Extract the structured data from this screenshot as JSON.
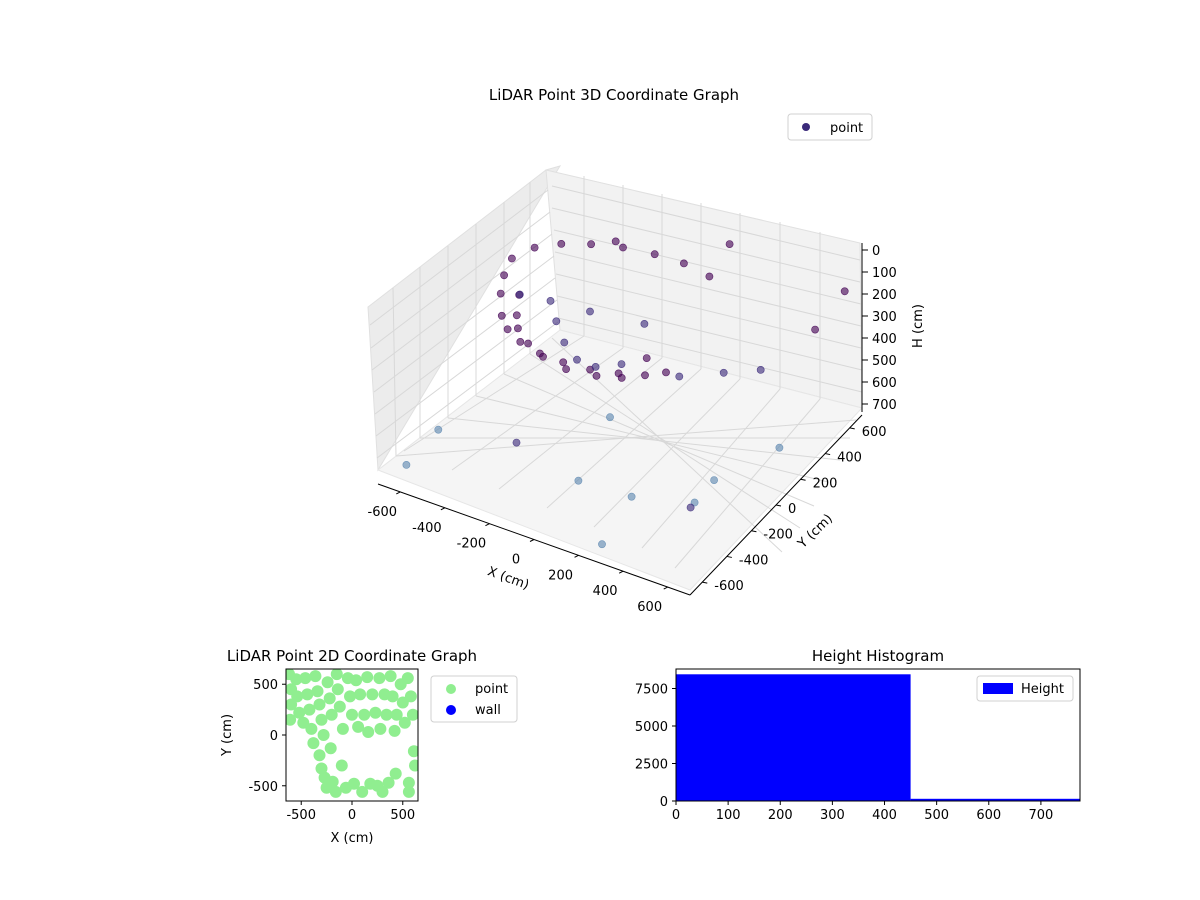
{
  "chart_data": [
    {
      "type": "scatter",
      "projection": "3d",
      "title": "LiDAR Point 3D Coordinate Graph",
      "xlabel": "X (cm)",
      "ylabel": "Y (cm)",
      "zlabel": "H (cm)",
      "xlim": [
        -700,
        700
      ],
      "ylim": [
        -700,
        700
      ],
      "zlim": [
        0,
        750
      ],
      "z_inverted": true,
      "xticks": [
        -600,
        -400,
        -200,
        0,
        200,
        400,
        600
      ],
      "yticks": [
        -600,
        -400,
        -200,
        0,
        200,
        400,
        600
      ],
      "zticks": [
        0,
        100,
        200,
        300,
        400,
        500,
        600,
        700
      ],
      "grid": true,
      "legend": {
        "position": "top-right",
        "entries": [
          "point"
        ]
      },
      "colors": {
        "dense": "#440154",
        "mid": "#3b2a7a",
        "sparse": "#5d87b0",
        "legend_marker": "#3b2a7a"
      },
      "series": [
        {
          "name": "point",
          "points": [
            [
              -540,
              100,
              160
            ],
            [
              -520,
              0,
              170
            ],
            [
              -480,
              -100,
              180
            ],
            [
              -420,
              -200,
              200
            ],
            [
              -350,
              -280,
              190
            ],
            [
              -260,
              -340,
              180
            ],
            [
              -150,
              -380,
              170
            ],
            [
              -40,
              -390,
              165
            ],
            [
              70,
              -370,
              170
            ],
            [
              170,
              -320,
              180
            ],
            [
              250,
              -250,
              200
            ],
            [
              300,
              -170,
              215
            ],
            [
              -510,
              230,
              175
            ],
            [
              -440,
              320,
              185
            ],
            [
              -350,
              400,
              200
            ],
            [
              -240,
              460,
              210
            ],
            [
              -120,
              500,
              220
            ],
            [
              0,
              520,
              230
            ],
            [
              120,
              510,
              240
            ],
            [
              -480,
              50,
              270
            ],
            [
              -430,
              -60,
              280
            ],
            [
              -370,
              -160,
              260
            ],
            [
              -280,
              -240,
              250
            ],
            [
              -180,
              -300,
              240
            ],
            [
              -60,
              -330,
              235
            ],
            [
              60,
              -300,
              240
            ],
            [
              140,
              -240,
              255
            ],
            [
              -400,
              160,
              330
            ],
            [
              -330,
              80,
              350
            ],
            [
              -250,
              0,
              370
            ],
            [
              -160,
              -60,
              380
            ],
            [
              -60,
              -90,
              360
            ],
            [
              40,
              -60,
              330
            ],
            [
              120,
              0,
              310
            ],
            [
              -560,
              200,
              380
            ],
            [
              -300,
              300,
              420
            ],
            [
              -100,
              380,
              450
            ],
            [
              200,
              120,
              430
            ],
            [
              300,
              300,
              480
            ],
            [
              400,
              420,
              500
            ],
            [
              -200,
              -480,
              520
            ],
            [
              100,
              -520,
              560
            ],
            [
              300,
              -450,
              600
            ],
            [
              500,
              -300,
              640
            ],
            [
              -600,
              -650,
              660
            ],
            [
              650,
              650,
              200
            ],
            [
              600,
              500,
              300
            ],
            [
              550,
              300,
              720
            ],
            [
              450,
              -50,
              700
            ],
            [
              250,
              -600,
              740
            ],
            [
              -650,
              -300,
              720
            ],
            [
              -350,
              600,
              300
            ],
            [
              150,
              620,
              150
            ],
            [
              620,
              -550,
              480
            ],
            [
              -100,
              100,
              700
            ]
          ]
        }
      ]
    },
    {
      "type": "scatter",
      "title": "LiDAR Point 2D Coordinate Graph",
      "xlabel": "X (cm)",
      "ylabel": "Y (cm)",
      "xlim": [
        -650,
        650
      ],
      "ylim": [
        -650,
        650
      ],
      "xticks": [
        -500,
        0,
        500
      ],
      "yticks": [
        -500,
        0,
        500
      ],
      "legend": {
        "position": "outside-right",
        "entries": [
          "point",
          "wall"
        ]
      },
      "colors": {
        "point": "#90ee90",
        "wall": "#0000ff"
      },
      "series": [
        {
          "name": "point",
          "points": [
            [
              -620,
              600
            ],
            [
              -600,
              450
            ],
            [
              -600,
              300
            ],
            [
              -610,
              150
            ],
            [
              -550,
              550
            ],
            [
              -540,
              380
            ],
            [
              -520,
              220
            ],
            [
              -480,
              120
            ],
            [
              -460,
              560
            ],
            [
              -440,
              400
            ],
            [
              -420,
              250
            ],
            [
              -400,
              60
            ],
            [
              -380,
              -80
            ],
            [
              -360,
              580
            ],
            [
              -340,
              430
            ],
            [
              -320,
              300
            ],
            [
              -320,
              -200
            ],
            [
              -300,
              150
            ],
            [
              -300,
              -330
            ],
            [
              -280,
              0
            ],
            [
              -270,
              -420
            ],
            [
              -250,
              -520
            ],
            [
              -240,
              520
            ],
            [
              -220,
              360
            ],
            [
              -210,
              -130
            ],
            [
              -200,
              200
            ],
            [
              -190,
              -460
            ],
            [
              -160,
              -560
            ],
            [
              -150,
              600
            ],
            [
              -140,
              450
            ],
            [
              -120,
              280
            ],
            [
              -100,
              -300
            ],
            [
              -90,
              60
            ],
            [
              -60,
              -520
            ],
            [
              -40,
              560
            ],
            [
              -20,
              380
            ],
            [
              0,
              200
            ],
            [
              20,
              -480
            ],
            [
              40,
              540
            ],
            [
              60,
              80
            ],
            [
              80,
              400
            ],
            [
              100,
              -560
            ],
            [
              120,
              200
            ],
            [
              150,
              570
            ],
            [
              160,
              30
            ],
            [
              180,
              -480
            ],
            [
              200,
              400
            ],
            [
              230,
              220
            ],
            [
              250,
              -500
            ],
            [
              270,
              560
            ],
            [
              280,
              60
            ],
            [
              300,
              -560
            ],
            [
              320,
              400
            ],
            [
              340,
              200
            ],
            [
              360,
              -470
            ],
            [
              380,
              580
            ],
            [
              400,
              380
            ],
            [
              420,
              40
            ],
            [
              440,
              200
            ],
            [
              480,
              500
            ],
            [
              500,
              320
            ],
            [
              520,
              120
            ],
            [
              550,
              560
            ],
            [
              580,
              380
            ],
            [
              600,
              200
            ],
            [
              610,
              -160
            ],
            [
              560,
              -560
            ],
            [
              430,
              -380
            ],
            [
              560,
              -470
            ],
            [
              620,
              -300
            ]
          ]
        },
        {
          "name": "wall",
          "points": []
        }
      ]
    },
    {
      "type": "bar",
      "title": "Height Histogram",
      "xlim": [
        0,
        775
      ],
      "ylim": [
        0,
        8800
      ],
      "xticks": [
        0,
        100,
        200,
        300,
        400,
        500,
        600,
        700
      ],
      "yticks": [
        0,
        2500,
        5000,
        7500
      ],
      "legend": {
        "position": "top-right",
        "entries": [
          "Height"
        ]
      },
      "colors": {
        "bar": "#0000ff"
      },
      "series": [
        {
          "name": "Height",
          "bins": [
            {
              "start": 0,
              "end": 450,
              "count": 8450
            },
            {
              "start": 450,
              "end": 775,
              "count": 150
            }
          ]
        }
      ]
    }
  ]
}
